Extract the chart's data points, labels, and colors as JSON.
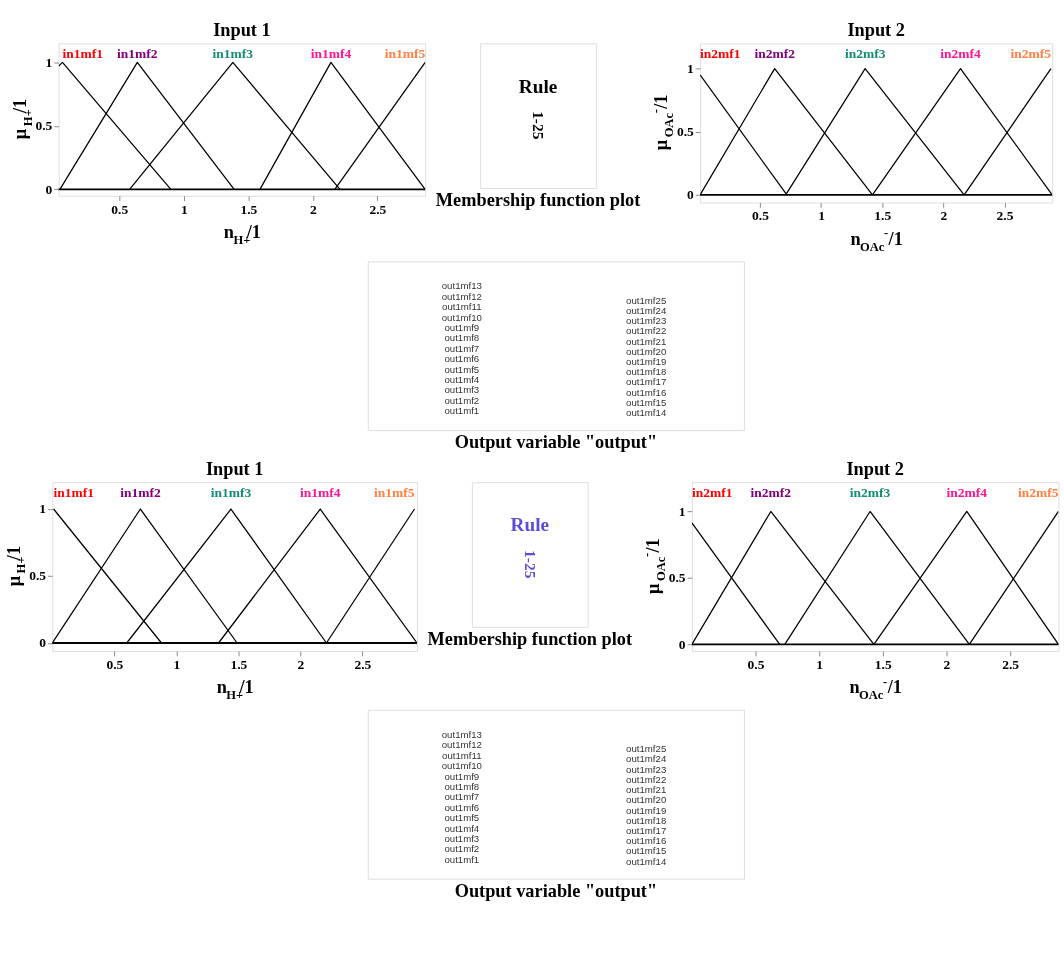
{
  "chart_data": [
    {
      "type": "line",
      "title": "Input 1",
      "xlabel": "n$_{H+}$/1",
      "ylabel": "μ$_{H+}$/1",
      "xlim": [
        0.03,
        2.87
      ],
      "ylim": [
        -0.05,
        1.15
      ],
      "xticks": [
        0.5,
        1,
        1.5,
        2,
        2.5
      ],
      "yticks": [
        0,
        0.5,
        1
      ],
      "ref_lines": [
        {
          "axis": "y",
          "value": 0,
          "color": "#000000"
        }
      ],
      "series": [
        {
          "name": "in1mf1",
          "color": "#000000",
          "x": [
            0.03,
            0.06,
            0.9
          ],
          "values": [
            0.97,
            1,
            0
          ]
        },
        {
          "name": "in1mf2",
          "color": "#000000",
          "x": [
            0.04,
            0.64,
            1.39
          ],
          "values": [
            0,
            1,
            0
          ]
        },
        {
          "name": "in1mf3",
          "color": "#000000",
          "x": [
            0.58,
            1.38,
            2.21
          ],
          "values": [
            0,
            1,
            0
          ]
        },
        {
          "name": "in1mf4",
          "color": "#000000",
          "x": [
            1.59,
            2.14,
            2.87
          ],
          "values": [
            0,
            1,
            0
          ]
        },
        {
          "name": "in1mf5",
          "color": "#000000",
          "x": [
            2.17,
            2.87
          ],
          "values": [
            0,
            1
          ]
        }
      ]
    },
    {
      "type": "other",
      "title": "Membership function plot",
      "annotations": [
        "Rule",
        "1-25"
      ]
    },
    {
      "type": "line",
      "title": "Input 2",
      "xlabel": "n$_{OAc}$$^{-}$/1",
      "ylabel": "μ$_{OAc}$$^{-}$/1",
      "xlim": [
        0.01,
        2.89
      ],
      "ylim": [
        -0.06,
        1.2
      ],
      "xticks": [
        0.5,
        1,
        1.5,
        2,
        2.5
      ],
      "yticks": [
        0,
        0.5,
        1
      ],
      "ref_lines": [
        {
          "axis": "y",
          "value": 0,
          "color": "#000000"
        }
      ],
      "series": [
        {
          "name": "in2mf1",
          "color": "#000000",
          "x": [
            0.01,
            0.72
          ],
          "values": [
            0.95,
            0
          ]
        },
        {
          "name": "in2mf2",
          "color": "#000000",
          "x": [
            0.01,
            0.62,
            1.42
          ],
          "values": [
            0,
            1,
            0
          ]
        },
        {
          "name": "in2mf3",
          "color": "#000000",
          "x": [
            0.71,
            1.36,
            2.17
          ],
          "values": [
            0,
            1,
            0
          ]
        },
        {
          "name": "in2mf4",
          "color": "#000000",
          "x": [
            1.42,
            2.14,
            2.89
          ],
          "values": [
            0,
            1,
            0
          ]
        },
        {
          "name": "in2mf5",
          "color": "#000000",
          "x": [
            2.17,
            2.88
          ],
          "values": [
            0,
            1
          ]
        }
      ]
    },
    {
      "type": "other",
      "title": "Output variable \"output\"",
      "annotations": [
        "out1mf13",
        "out1mf12",
        "out1mf11",
        "out1mf10",
        "out1mf9",
        "out1mf8",
        "out1mf7",
        "out1mf6",
        "out1mf5",
        "out1mf4",
        "out1mf3",
        "out1mf2",
        "out1mf1",
        "out1mf25",
        "out1mf24",
        "out1mf23",
        "out1mf22",
        "out1mf21",
        "out1mf20",
        "out1mf19",
        "out1mf18",
        "out1mf17",
        "out1mf16",
        "out1mf15",
        "out1mf14"
      ]
    },
    {
      "type": "line",
      "title": "Input 1",
      "xlabel": "n$_{H+}$/1",
      "ylabel": "μ$_{H+}$/1",
      "xlim": [
        0,
        2.94
      ],
      "ylim": [
        -0.06,
        1.2
      ],
      "xticks": [
        0.5,
        1,
        1.5,
        2,
        2.5
      ],
      "yticks": [
        0,
        0.5,
        1
      ],
      "ref_lines": [
        {
          "axis": "y",
          "value": 0,
          "color": "#000000"
        }
      ],
      "series": [
        {
          "name": "in1mf1",
          "color": "#000000",
          "x": [
            0.01,
            0.88
          ],
          "values": [
            1,
            0
          ]
        },
        {
          "name": "in1mf2",
          "color": "#000000",
          "x": [
            0,
            0.71,
            1.49
          ],
          "values": [
            0,
            1,
            0
          ]
        },
        {
          "name": "in1mf3",
          "color": "#000000",
          "x": [
            0.6,
            1.44,
            2.21
          ],
          "values": [
            0,
            1,
            0
          ]
        },
        {
          "name": "in1mf4",
          "color": "#000000",
          "x": [
            1.34,
            2.16,
            2.94
          ],
          "values": [
            0,
            1,
            0
          ]
        },
        {
          "name": "in1mf5",
          "color": "#000000",
          "x": [
            2.21,
            2.92
          ],
          "values": [
            0,
            1
          ]
        }
      ]
    },
    {
      "type": "other",
      "title": "Membership function plot",
      "annotations": [
        "Rule",
        "1-25"
      ]
    },
    {
      "type": "line",
      "title": "Input 2",
      "xlabel": "n$_{OAc}$$^{-}$/1",
      "ylabel": "μ$_{OAc}$$^{-}$/1",
      "xlim": [
        0,
        2.88
      ],
      "ylim": [
        -0.05,
        1.22
      ],
      "xticks": [
        0.5,
        1,
        1.5,
        2,
        2.5
      ],
      "yticks": [
        0,
        0.5,
        1
      ],
      "ref_lines": [
        {
          "axis": "y",
          "value": 0,
          "color": "#000000"
        }
      ],
      "series": [
        {
          "name": "in2mf1",
          "color": "#000000",
          "x": [
            0,
            0.69
          ],
          "values": [
            0.915,
            0
          ]
        },
        {
          "name": "in2mf2",
          "color": "#000000",
          "x": [
            0,
            0.62,
            1.43
          ],
          "values": [
            0,
            1,
            0
          ]
        },
        {
          "name": "in2mf3",
          "color": "#000000",
          "x": [
            0.73,
            1.4,
            2.18
          ],
          "values": [
            0,
            1,
            0
          ]
        },
        {
          "name": "in2mf4",
          "color": "#000000",
          "x": [
            1.43,
            2.16,
            2.88
          ],
          "values": [
            0,
            1,
            0
          ]
        },
        {
          "name": "in2mf5",
          "color": "#000000",
          "x": [
            2.18,
            2.88
          ],
          "values": [
            0,
            1
          ]
        }
      ]
    },
    {
      "type": "other",
      "title": "Output variable \"output\"",
      "annotations": [
        "out1mf13",
        "out1mf12",
        "out1mf11",
        "out1mf10",
        "out1mf9",
        "out1mf8",
        "out1mf7",
        "out1mf6",
        "out1mf5",
        "out1mf4",
        "out1mf3",
        "out1mf2",
        "out1mf1",
        "out1mf25",
        "out1mf24",
        "out1mf23",
        "out1mf22",
        "out1mf21",
        "out1mf20",
        "out1mf19",
        "out1mf18",
        "out1mf17",
        "out1mf16",
        "out1mf15",
        "out1mf14"
      ]
    }
  ]
}
